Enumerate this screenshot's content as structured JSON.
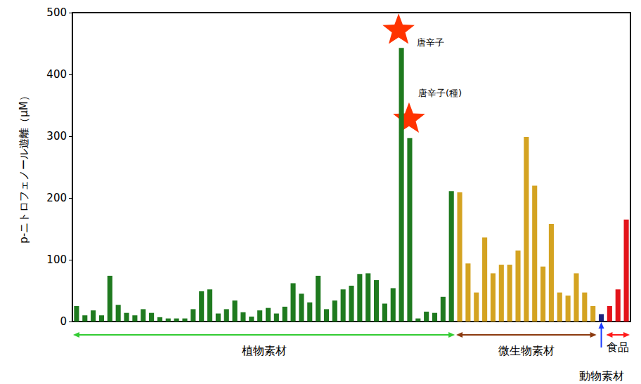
{
  "chart_data": {
    "type": "bar",
    "ylabel": "p-ニトロフェノール遊離（μM）",
    "ylim": [
      0,
      500
    ],
    "yticks": [
      0,
      100,
      200,
      300,
      400,
      500
    ],
    "grid": false,
    "tick_labels": "y",
    "groups": [
      {
        "label": "植物素材",
        "color": "#1f7a1f",
        "values": [
          25,
          10,
          18,
          10,
          74,
          27,
          14,
          10,
          20,
          14,
          7,
          5,
          5,
          5,
          20,
          49,
          52,
          13,
          20,
          34,
          15,
          8,
          18,
          22,
          13,
          24,
          62,
          45,
          31,
          74,
          20,
          34,
          52,
          58,
          77,
          78,
          67,
          29,
          54,
          443,
          297,
          5,
          16,
          14,
          40,
          211
        ]
      },
      {
        "label": "微生物素材",
        "color": "#d4a321",
        "values": [
          209,
          94,
          47,
          136,
          78,
          92,
          92,
          115,
          299,
          220,
          89,
          158,
          47,
          42,
          78,
          47,
          25
        ]
      },
      {
        "label": "動物素材",
        "color": "#1a237e",
        "values": [
          12
        ]
      },
      {
        "label": "食品",
        "color": "#e3141b",
        "values": [
          25,
          52,
          165
        ]
      }
    ],
    "annotations": [
      {
        "text": "唐辛子",
        "group": 0,
        "index": 39
      },
      {
        "text": "唐辛子(種)",
        "group": 0,
        "index": 40
      }
    ]
  }
}
